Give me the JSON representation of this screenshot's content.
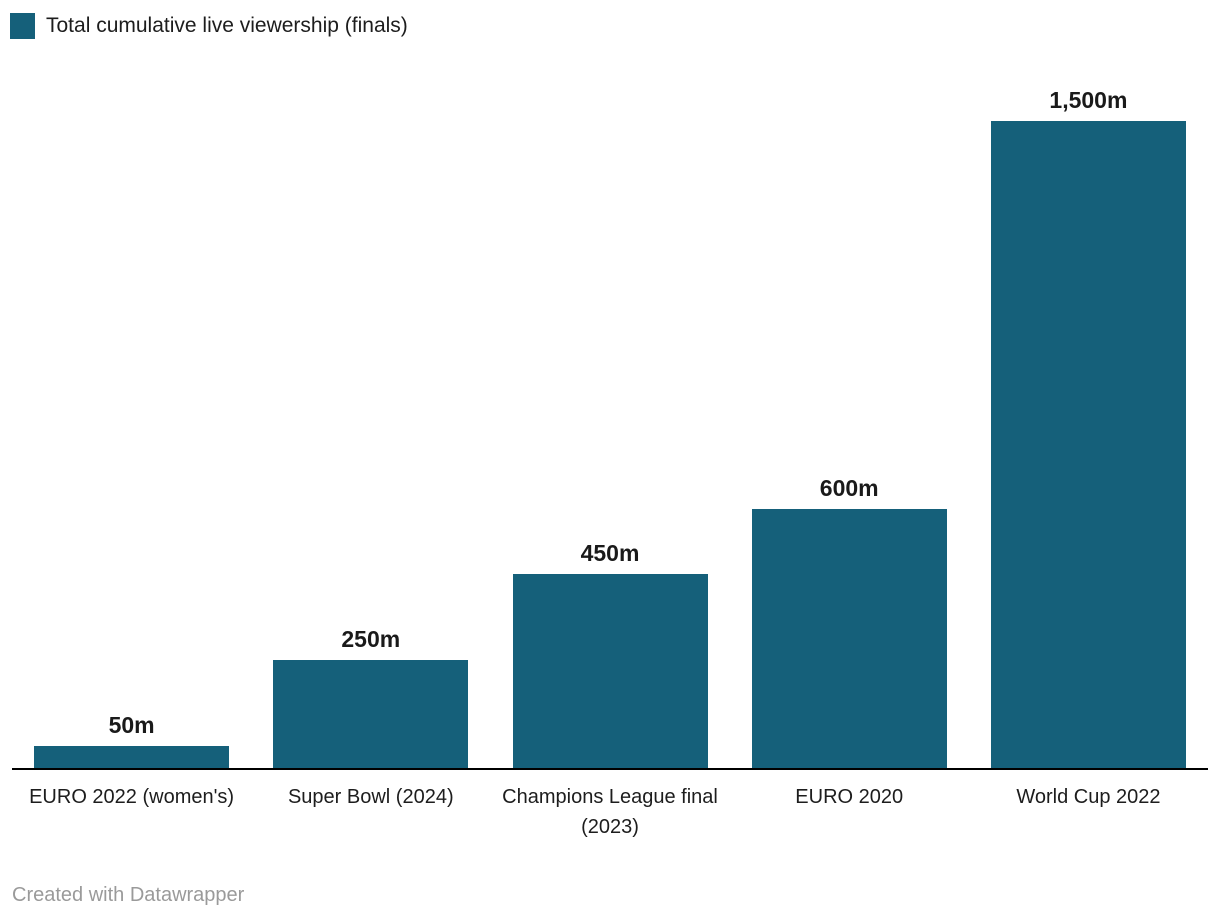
{
  "legend": {
    "label": "Total cumulative live viewership (finals)"
  },
  "chart_data": {
    "type": "bar",
    "title": "",
    "categories": [
      "EURO 2022 (women's)",
      "Super Bowl (2024)",
      "Champions League final (2023)",
      "EURO 2020",
      "World Cup 2022"
    ],
    "values": [
      50,
      250,
      450,
      600,
      1500
    ],
    "value_labels": [
      "50m",
      "250m",
      "450m",
      "600m",
      "1,500m"
    ],
    "series_name": "Total cumulative live viewership (finals)",
    "ylim": [
      0,
      1500
    ],
    "grid": false,
    "legend_position": "top-left",
    "bar_color": "#15607a",
    "axis_line_color": "#000000",
    "category_label_color": "#1d1d1d",
    "value_label_color": "#1a1a1a"
  },
  "footer": {
    "credit": "Created with Datawrapper"
  }
}
